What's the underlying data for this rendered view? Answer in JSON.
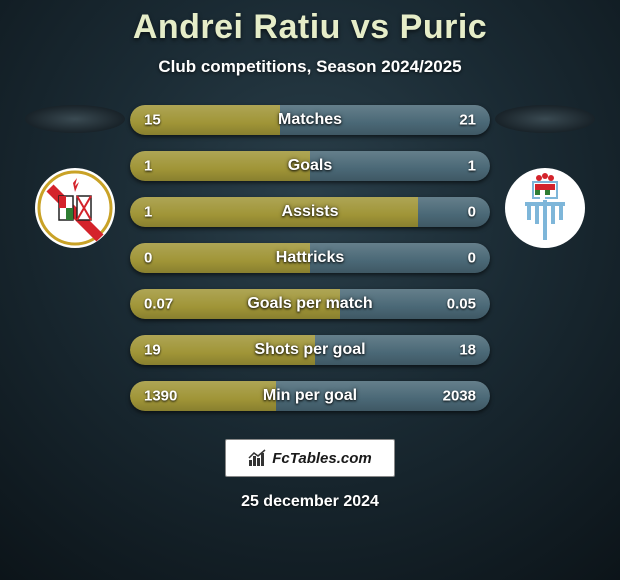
{
  "title": "Andrei Ratiu vs Puric",
  "subtitle": "Club competitions, Season 2024/2025",
  "date": "25 december 2024",
  "footer_brand": "FcTables.com",
  "colors": {
    "primary": "#a09537",
    "secondary": "#4a6876",
    "bar_shadow": "rgba(0,0,0,0.5)",
    "title_color": "#e6edc8",
    "text_white": "#ffffff"
  },
  "stats": [
    {
      "label": "Matches",
      "left_val": "15",
      "right_val": "21",
      "left_pct": 41.7,
      "right_pct": 58.3
    },
    {
      "label": "Goals",
      "left_val": "1",
      "right_val": "1",
      "left_pct": 50.0,
      "right_pct": 50.0
    },
    {
      "label": "Assists",
      "left_val": "1",
      "right_val": "0",
      "left_pct": 80.0,
      "right_pct": 20.0
    },
    {
      "label": "Hattricks",
      "left_val": "0",
      "right_val": "0",
      "left_pct": 50.0,
      "right_pct": 50.0
    },
    {
      "label": "Goals per match",
      "left_val": "0.07",
      "right_val": "0.05",
      "left_pct": 58.3,
      "right_pct": 41.7
    },
    {
      "label": "Shots per goal",
      "left_val": "19",
      "right_val": "18",
      "left_pct": 51.4,
      "right_pct": 48.6
    },
    {
      "label": "Min per goal",
      "left_val": "1390",
      "right_val": "2038",
      "left_pct": 40.5,
      "right_pct": 59.5
    }
  ],
  "crest_left": {
    "name": "rayo-vallecano-crest",
    "bg": "#ffffff",
    "accent_red": "#d4232b",
    "accent_gold": "#c9a227",
    "accent_green": "#2e7d32"
  },
  "crest_right": {
    "name": "celta-style-crest",
    "bg": "#ffffff",
    "accent_blue": "#7eb6d9",
    "accent_red": "#d4232b",
    "accent_green": "#2e7d32"
  }
}
